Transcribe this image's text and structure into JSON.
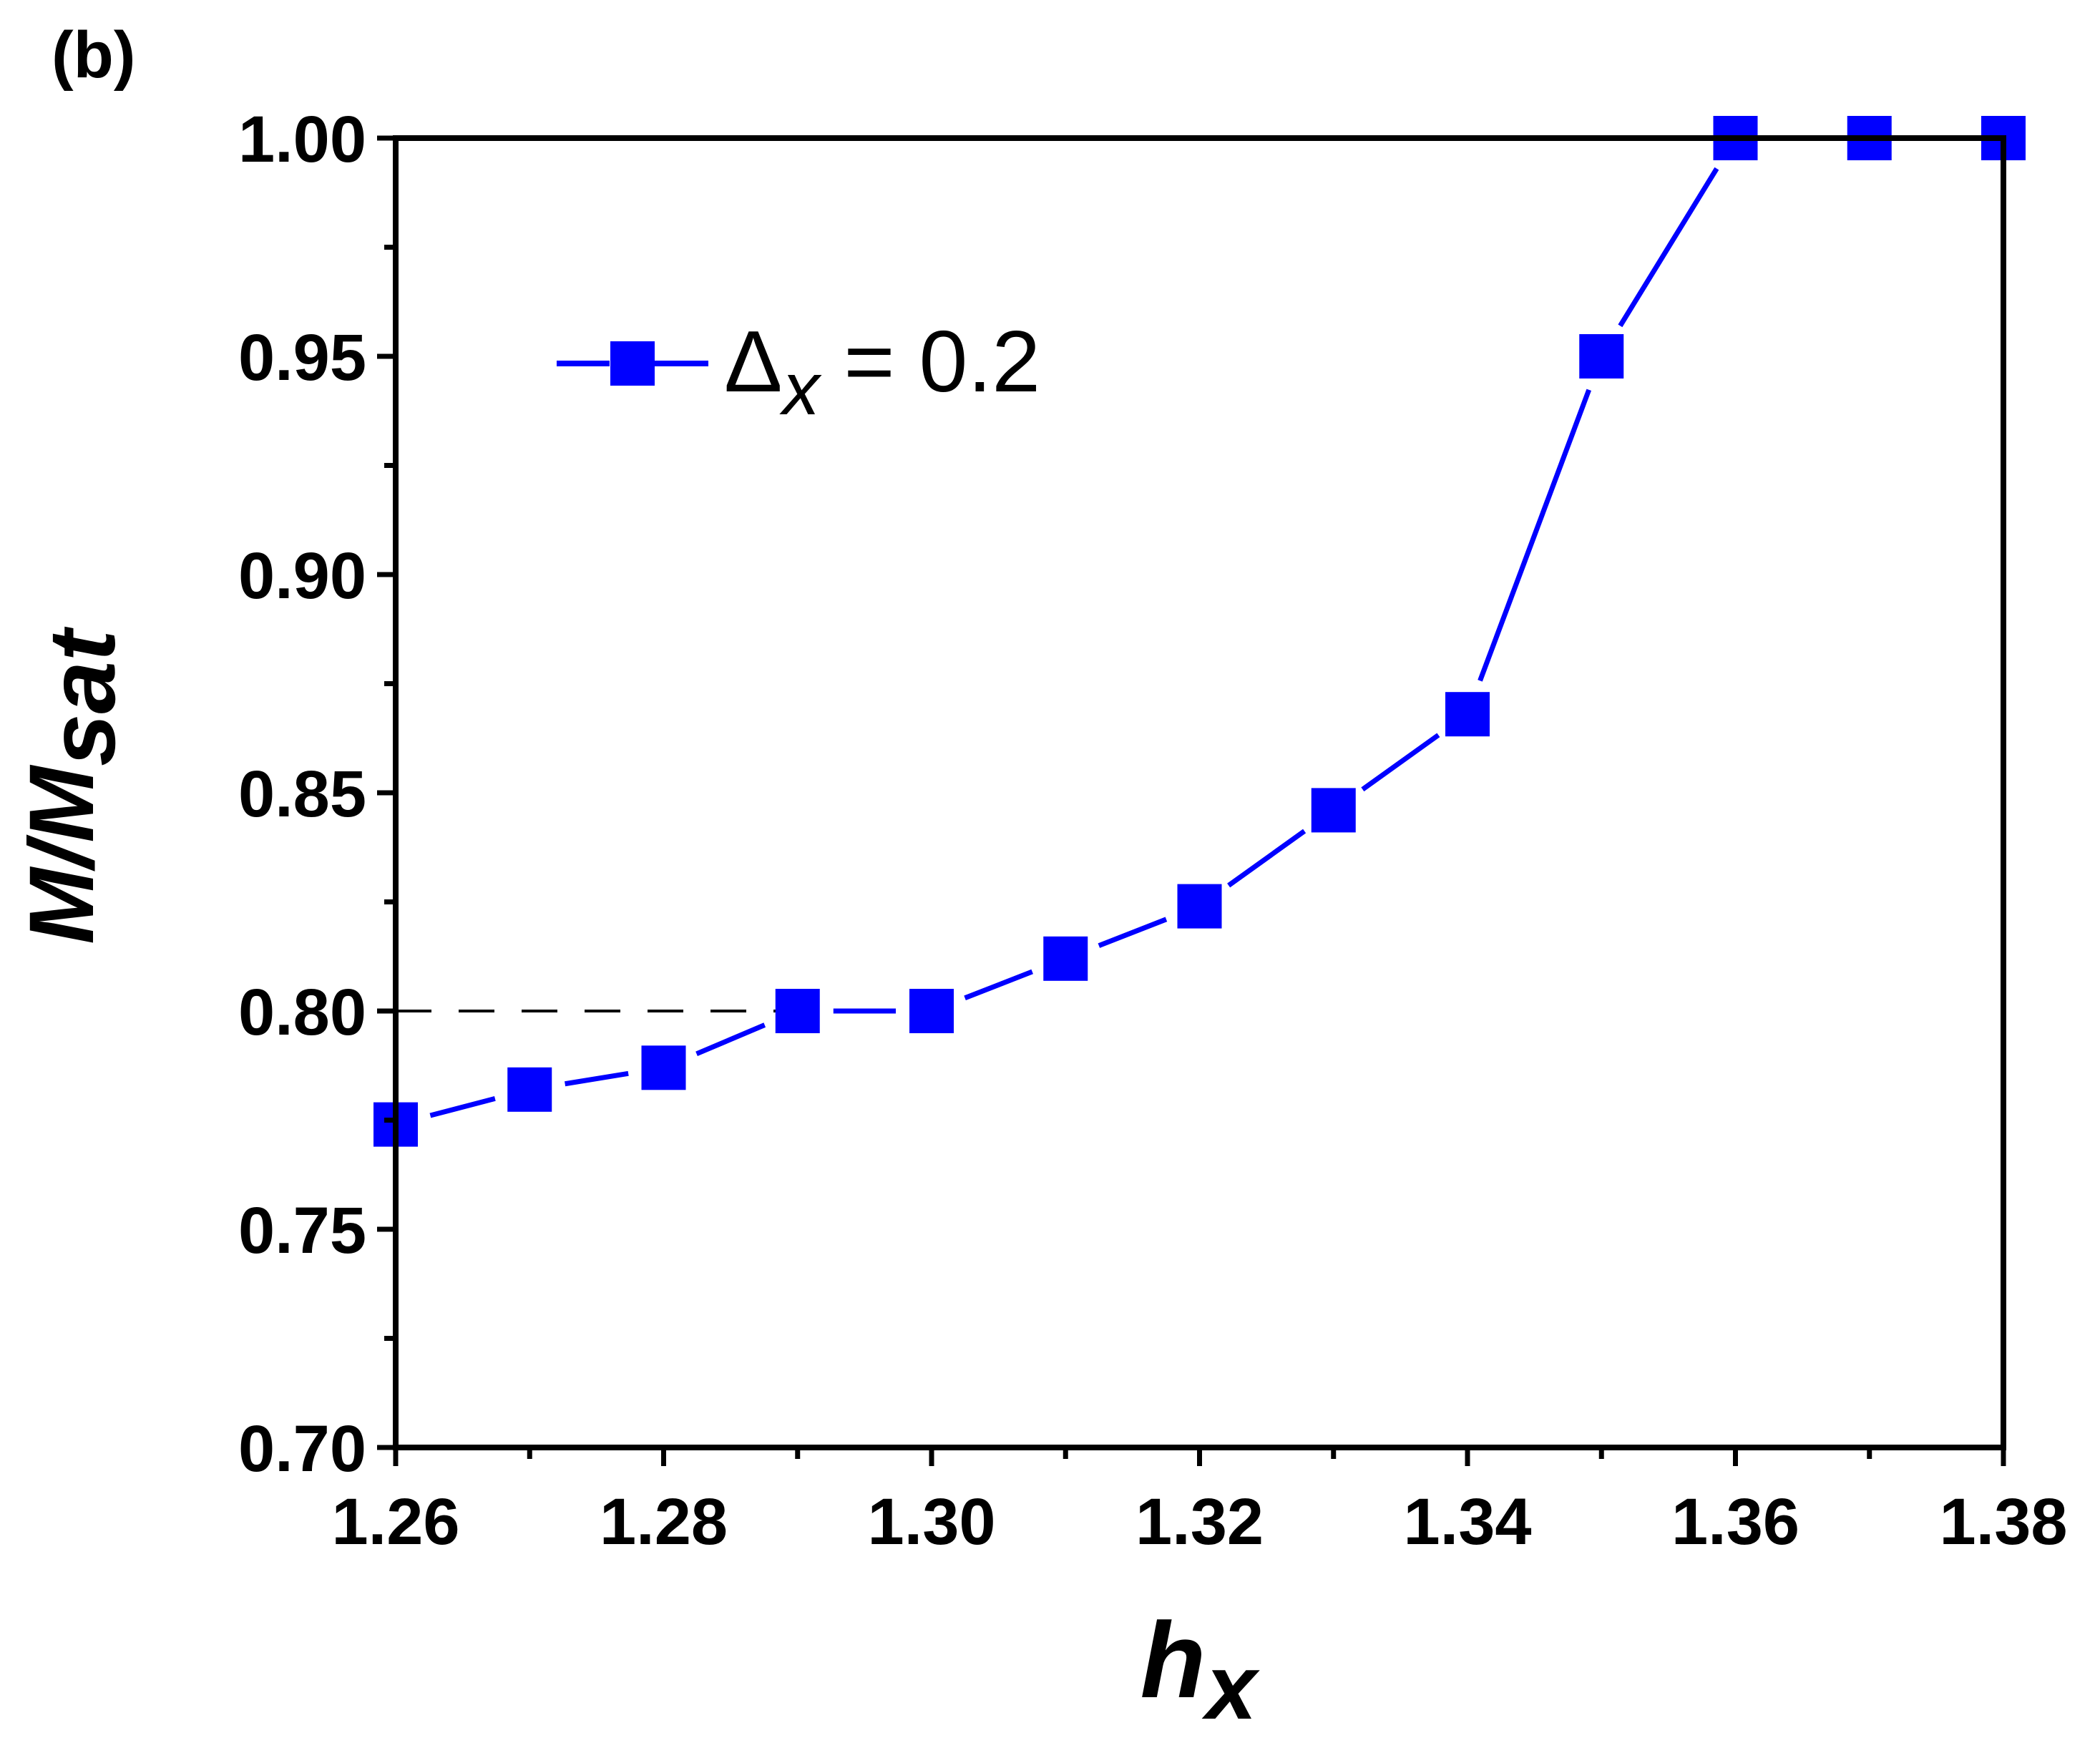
{
  "chart_data": {
    "type": "line",
    "panel_label": "(b)",
    "xlabel": {
      "main": "h",
      "sub": "x"
    },
    "ylabel": {
      "main": "M/M",
      "sub": "sat"
    },
    "xlim": [
      1.26,
      1.38
    ],
    "ylim": [
      0.7,
      1.0
    ],
    "x_ticks": [
      "1.26",
      "1.28",
      "1.30",
      "1.32",
      "1.34",
      "1.36",
      "1.38"
    ],
    "y_ticks": [
      "0.70",
      "0.75",
      "0.80",
      "0.85",
      "0.90",
      "0.95",
      "1.00"
    ],
    "x_tick_values": [
      1.26,
      1.28,
      1.3,
      1.32,
      1.34,
      1.36,
      1.38
    ],
    "y_tick_values": [
      0.7,
      0.75,
      0.8,
      0.85,
      0.9,
      0.95,
      1.0
    ],
    "grid": false,
    "legend": {
      "placement": "top-left",
      "label_main": "Δ",
      "label_sub": "x",
      "label_rest": " = 0.2"
    },
    "reference_line": {
      "y": 0.8,
      "x_from": 1.26,
      "x_to": 1.29,
      "style": "dashed",
      "color": "#000000"
    },
    "series": [
      {
        "marker": "square",
        "color": "#0000ff",
        "x": [
          1.26,
          1.27,
          1.28,
          1.29,
          1.3,
          1.31,
          1.32,
          1.33,
          1.34,
          1.35,
          1.36,
          1.37,
          1.38
        ],
        "y": [
          0.774,
          0.782,
          0.787,
          0.8,
          0.8,
          0.812,
          0.824,
          0.846,
          0.868,
          0.95,
          1.0,
          1.0,
          1.0
        ]
      }
    ]
  }
}
